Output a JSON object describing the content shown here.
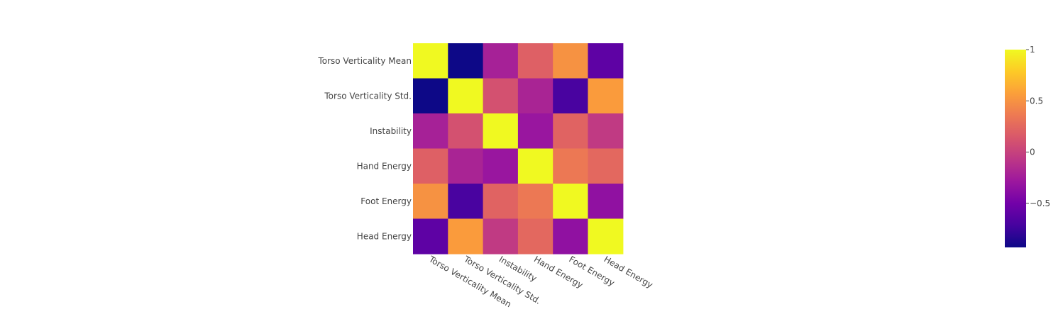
{
  "chart_data": {
    "type": "heatmap",
    "x_categories": [
      "Torso Verticality Mean",
      "Torso Verticality Std.",
      "Instability",
      "Hand Energy",
      "Foot Energy",
      "Head Energy"
    ],
    "y_categories": [
      "Torso Verticality Mean",
      "Torso Verticality Std.",
      "Instability",
      "Hand Energy",
      "Foot Energy",
      "Head Energy"
    ],
    "z": [
      [
        1.0,
        -0.93,
        -0.22,
        0.2,
        0.5,
        -0.6
      ],
      [
        -0.93,
        1.0,
        0.1,
        -0.2,
        -0.7,
        0.55
      ],
      [
        -0.22,
        0.1,
        1.0,
        -0.3,
        0.22,
        -0.05
      ],
      [
        0.2,
        -0.2,
        -0.3,
        1.0,
        0.35,
        0.25
      ],
      [
        0.5,
        -0.7,
        0.22,
        0.35,
        1.0,
        -0.35
      ],
      [
        -0.6,
        0.55,
        -0.05,
        0.25,
        -0.35,
        1.0
      ]
    ],
    "zmin": -0.93,
    "zmax": 1.0,
    "colorscale": [
      "#0d0887",
      "#46039f",
      "#7201a8",
      "#9c179e",
      "#bd3786",
      "#d8576b",
      "#ed7953",
      "#fb9f3a",
      "#fdca26",
      "#f0f921"
    ],
    "colorbar": {
      "ticks": [
        1,
        0.5,
        0,
        -0.5
      ],
      "tick_labels": [
        "1",
        "0.5",
        "0",
        "−0.5"
      ]
    },
    "title": "",
    "xlabel": "",
    "ylabel": ""
  }
}
